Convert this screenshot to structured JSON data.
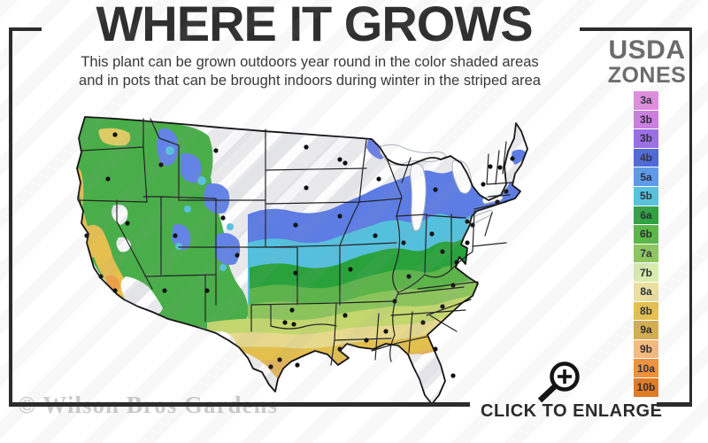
{
  "header": {
    "title": "WHERE IT GROWS",
    "subtitle_line1": "This plant can be grown outdoors year round in the color shaded areas",
    "subtitle_line2": "and in pots that can be brought indoors during winter in the striped area"
  },
  "legend": {
    "title_line1": "USDA",
    "title_line2": "ZONES",
    "zones": [
      {
        "label": "3a",
        "color": "#e08ddf"
      },
      {
        "label": "3b",
        "color": "#cb7fdf"
      },
      {
        "label": "3b",
        "color": "#9a6ee6"
      },
      {
        "label": "4b",
        "color": "#4f68da"
      },
      {
        "label": "5a",
        "color": "#5f9ae9"
      },
      {
        "label": "5b",
        "color": "#57c4df"
      },
      {
        "label": "6a",
        "color": "#2fa343"
      },
      {
        "label": "6b",
        "color": "#5cb74b"
      },
      {
        "label": "7a",
        "color": "#8ec75e"
      },
      {
        "label": "7b",
        "color": "#d7ecaf"
      },
      {
        "label": "8a",
        "color": "#eadf9f"
      },
      {
        "label": "8b",
        "color": "#e6c14f"
      },
      {
        "label": "9a",
        "color": "#d4ae52"
      },
      {
        "label": "9b",
        "color": "#f5bb80"
      },
      {
        "label": "10a",
        "color": "#f2913a"
      },
      {
        "label": "10b",
        "color": "#e07b26"
      }
    ]
  },
  "map": {
    "region": "Contiguous United States",
    "striped_area_color": "#e9e9ec",
    "stripe_color": "#ffffff"
  },
  "footer": {
    "watermark": "© Wilson Bros Gardens",
    "enlarge_label": "CLICK TO ENLARGE"
  },
  "icons": {
    "enlarge": "magnifier-plus-icon"
  }
}
